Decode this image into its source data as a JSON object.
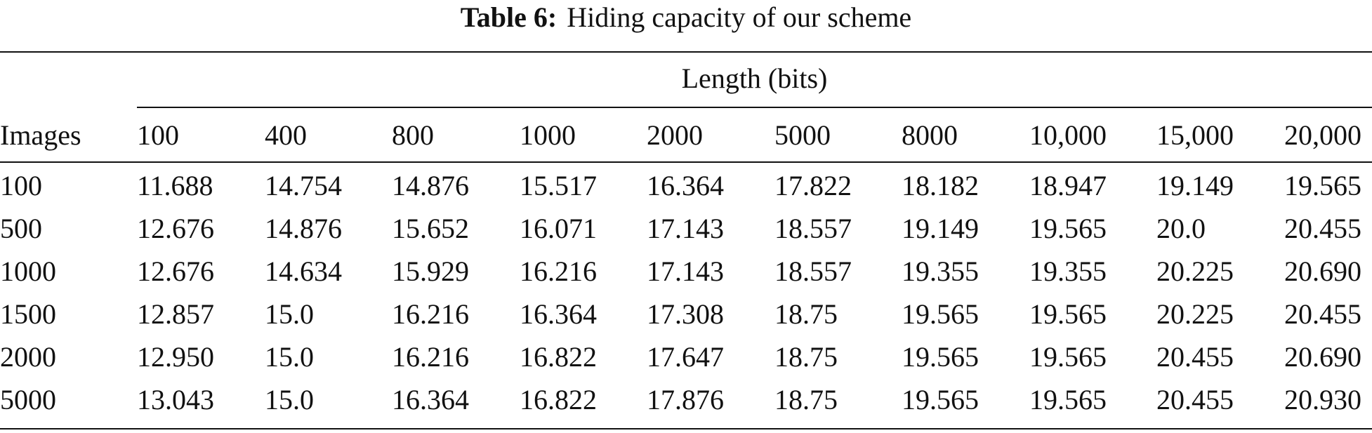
{
  "caption": {
    "label": "Table 6:",
    "text": "Hiding capacity of our scheme"
  },
  "table": {
    "group_header": "Length (bits)",
    "row_header": "Images",
    "columns": [
      "100",
      "400",
      "800",
      "1000",
      "2000",
      "5000",
      "8000",
      "10,000",
      "15,000",
      "20,000"
    ],
    "rows": [
      {
        "images": "100",
        "values": [
          "11.688",
          "14.754",
          "14.876",
          "15.517",
          "16.364",
          "17.822",
          "18.182",
          "18.947",
          "19.149",
          "19.565"
        ]
      },
      {
        "images": "500",
        "values": [
          "12.676",
          "14.876",
          "15.652",
          "16.071",
          "17.143",
          "18.557",
          "19.149",
          "19.565",
          "20.0",
          "20.455"
        ]
      },
      {
        "images": "1000",
        "values": [
          "12.676",
          "14.634",
          "15.929",
          "16.216",
          "17.143",
          "18.557",
          "19.355",
          "19.355",
          "20.225",
          "20.690"
        ]
      },
      {
        "images": "1500",
        "values": [
          "12.857",
          "15.0",
          "16.216",
          "16.364",
          "17.308",
          "18.75",
          "19.565",
          "19.565",
          "20.225",
          "20.455"
        ]
      },
      {
        "images": "2000",
        "values": [
          "12.950",
          "15.0",
          "16.216",
          "16.822",
          "17.647",
          "18.75",
          "19.565",
          "19.565",
          "20.455",
          "20.690"
        ]
      },
      {
        "images": "5000",
        "values": [
          "13.043",
          "15.0",
          "16.364",
          "16.822",
          "17.876",
          "18.75",
          "19.565",
          "19.565",
          "20.455",
          "20.930"
        ]
      }
    ]
  }
}
